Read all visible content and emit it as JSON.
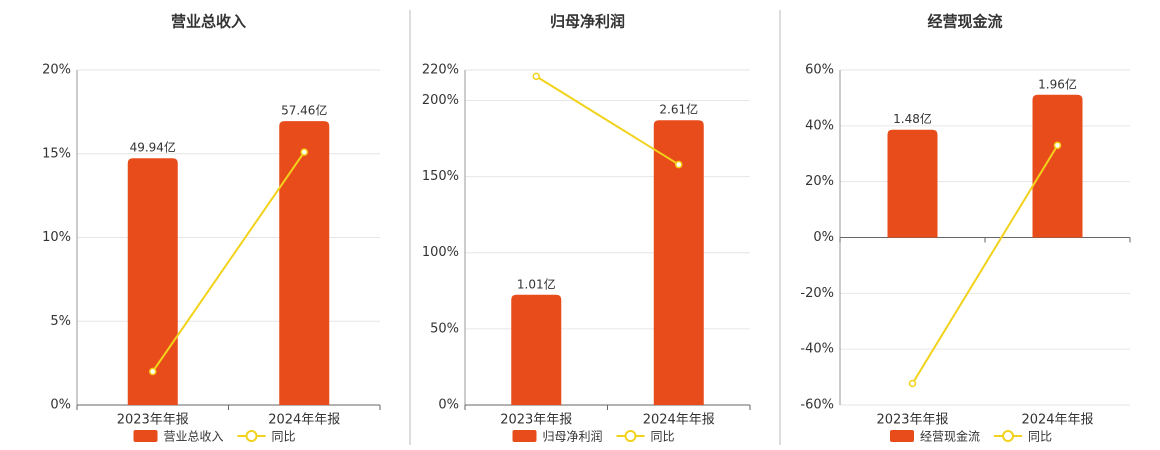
{
  "chart_data": [
    {
      "type": "bar",
      "title": "营业总收入",
      "categories": [
        "2023年年报",
        "2024年年报"
      ],
      "series": [
        {
          "name": "营业总收入",
          "type": "bar",
          "color": "#e84c1b",
          "axis": "y2",
          "values": [
            49.94,
            57.46
          ],
          "value_labels": [
            "49.94亿",
            "57.46亿"
          ]
        },
        {
          "name": "同比",
          "type": "line",
          "color": "#f2d21b",
          "values": [
            2.0,
            15.1
          ]
        }
      ],
      "ylim": [
        0,
        20
      ],
      "yticks": [
        {
          "value": 0,
          "label": "0%"
        },
        {
          "value": 5,
          "label": "5%"
        },
        {
          "value": 10,
          "label": "10%"
        },
        {
          "value": 15,
          "label": "15%"
        },
        {
          "value": 20,
          "label": "20%"
        }
      ],
      "y2lim": [
        0,
        67.8
      ],
      "grid": true
    },
    {
      "type": "bar",
      "title": "归母净利润",
      "categories": [
        "2023年年报",
        "2024年年报"
      ],
      "series": [
        {
          "name": "归母净利润",
          "type": "bar",
          "color": "#e84c1b",
          "axis": "y2",
          "values": [
            1.01,
            2.61
          ],
          "value_labels": [
            "1.01亿",
            "2.61亿"
          ]
        },
        {
          "name": "同比",
          "type": "line",
          "color": "#f2d21b",
          "values": [
            215.8,
            157.9
          ]
        }
      ],
      "ylim": [
        0,
        220
      ],
      "yticks": [
        {
          "value": 0,
          "label": "0%"
        },
        {
          "value": 50,
          "label": "50%"
        },
        {
          "value": 100,
          "label": "100%"
        },
        {
          "value": 150,
          "label": "150%"
        },
        {
          "value": 200,
          "label": "200%"
        },
        {
          "value": 220,
          "label": "220%"
        }
      ],
      "y2lim": [
        0,
        3.07
      ],
      "grid": true
    },
    {
      "type": "bar",
      "title": "经营现金流",
      "categories": [
        "2023年年报",
        "2024年年报"
      ],
      "series": [
        {
          "name": "经营现金流",
          "type": "bar",
          "color": "#e84c1b",
          "axis": "y2",
          "values": [
            1.48,
            1.96
          ],
          "value_labels": [
            "1.48亿",
            "1.96亿"
          ]
        },
        {
          "name": "同比",
          "type": "line",
          "color": "#f2d21b",
          "values": [
            -52.3,
            33.0
          ]
        }
      ],
      "ylim": [
        -60,
        60
      ],
      "yticks": [
        {
          "value": -60,
          "label": "-60%"
        },
        {
          "value": -40,
          "label": "-40%"
        },
        {
          "value": -20,
          "label": "-20%"
        },
        {
          "value": 0,
          "label": "0%"
        },
        {
          "value": 20,
          "label": "20%"
        },
        {
          "value": 40,
          "label": "40%"
        },
        {
          "value": 60,
          "label": "60%"
        }
      ],
      "y2lim": [
        -2.3,
        2.3
      ],
      "grid": true
    }
  ]
}
